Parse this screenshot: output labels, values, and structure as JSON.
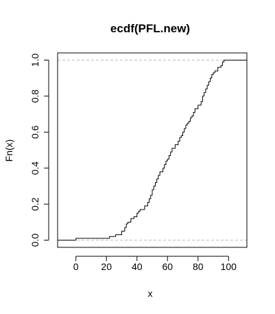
{
  "chart_data": {
    "type": "line",
    "title": "ecdf(PFL.new)",
    "xlabel": "x",
    "ylabel": "Fn(x)",
    "xlim": [
      -12,
      112
    ],
    "ylim": [
      -0.04,
      1.04
    ],
    "x_ticks": [
      0,
      20,
      40,
      60,
      80,
      100
    ],
    "y_ticks": [
      0.0,
      0.2,
      0.4,
      0.6,
      0.8,
      1.0
    ],
    "x_tick_labels": [
      "0",
      "20",
      "40",
      "60",
      "80",
      "100"
    ],
    "y_tick_labels": [
      "0.0",
      "0.2",
      "0.4",
      "0.6",
      "0.8",
      "1.0"
    ],
    "reference_lines": [
      0,
      1
    ],
    "grid": false,
    "series": [
      {
        "x": [
          0,
          22,
          26,
          30,
          32,
          33,
          34,
          36,
          38,
          40,
          41,
          42,
          45,
          47,
          48,
          49,
          50,
          51,
          52,
          53,
          54,
          55,
          57,
          58,
          59,
          60,
          61,
          62,
          63,
          65,
          67,
          68,
          69,
          70,
          71,
          72,
          73,
          74,
          75,
          76,
          77,
          78,
          80,
          82,
          83,
          84,
          85,
          86,
          87,
          88,
          89,
          90,
          91,
          93,
          95,
          96,
          97
        ],
        "y": [
          0.01,
          0.02,
          0.03,
          0.05,
          0.07,
          0.09,
          0.1,
          0.12,
          0.13,
          0.15,
          0.16,
          0.17,
          0.19,
          0.21,
          0.23,
          0.25,
          0.28,
          0.3,
          0.32,
          0.34,
          0.36,
          0.38,
          0.4,
          0.42,
          0.44,
          0.45,
          0.47,
          0.49,
          0.51,
          0.53,
          0.55,
          0.57,
          0.58,
          0.6,
          0.62,
          0.64,
          0.65,
          0.66,
          0.68,
          0.69,
          0.71,
          0.73,
          0.75,
          0.77,
          0.8,
          0.82,
          0.84,
          0.86,
          0.88,
          0.9,
          0.92,
          0.93,
          0.94,
          0.96,
          0.97,
          0.99,
          1.0
        ]
      }
    ]
  }
}
